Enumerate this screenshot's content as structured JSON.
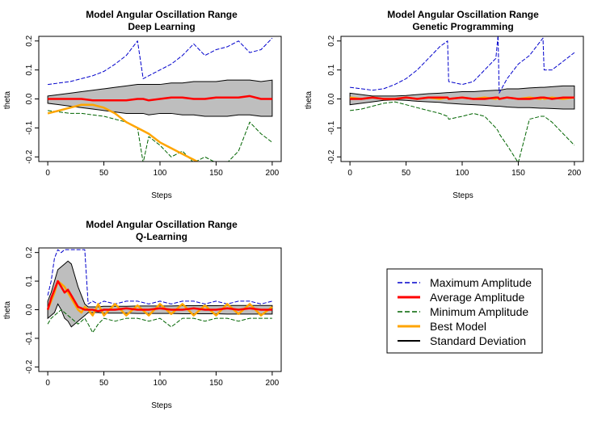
{
  "colors": {
    "max": "#0000cc",
    "avg": "#ff0000",
    "min": "#006400",
    "best": "#ffa500",
    "std_fill": "#bebebe",
    "std_line": "#000000"
  },
  "legend": {
    "entries": [
      {
        "label": "Maximum Amplitude",
        "color": "#0000cc",
        "style": "dashed"
      },
      {
        "label": "Average Amplitude",
        "color": "#ff0000",
        "style": "solid-thick"
      },
      {
        "label": "Minimum Amplitude",
        "color": "#006400",
        "style": "dashed"
      },
      {
        "label": "Best Model",
        "color": "#ffa500",
        "style": "solid-thick"
      },
      {
        "label": "Standard Deviation",
        "color": "#000000",
        "style": "solid"
      }
    ]
  },
  "chart_data": [
    {
      "type": "line",
      "title": "Model Angular Oscillation Range",
      "subtitle": "Deep Learning",
      "xlabel": "Steps",
      "ylabel": "theta",
      "xlim": [
        0,
        200
      ],
      "ylim": [
        -0.2,
        0.2
      ],
      "xticks": [
        "0",
        "50",
        "100",
        "150",
        "200"
      ],
      "yticks": [
        "-0.2",
        "-0.1",
        "0.0",
        "0.1",
        "0.2"
      ],
      "x": [
        0,
        10,
        20,
        30,
        40,
        50,
        60,
        70,
        80,
        85,
        90,
        100,
        110,
        120,
        130,
        140,
        150,
        160,
        170,
        180,
        190,
        200
      ],
      "series": [
        {
          "name": "Maximum Amplitude",
          "values": [
            0.05,
            0.055,
            0.06,
            0.07,
            0.08,
            0.095,
            0.12,
            0.15,
            0.2,
            0.07,
            0.08,
            0.1,
            0.12,
            0.15,
            0.19,
            0.15,
            0.17,
            0.18,
            0.2,
            0.16,
            0.17,
            0.21
          ]
        },
        {
          "name": "Average Amplitude",
          "values": [
            0.0,
            0.0,
            0.0,
            0.0,
            -0.005,
            -0.005,
            -0.005,
            -0.005,
            0.0,
            0.0,
            -0.005,
            0.0,
            0.005,
            0.005,
            0.0,
            0.0,
            0.005,
            0.005,
            0.005,
            0.01,
            0.0,
            0.0
          ]
        },
        {
          "name": "Minimum Amplitude",
          "values": [
            -0.04,
            -0.045,
            -0.05,
            -0.05,
            -0.055,
            -0.06,
            -0.07,
            -0.08,
            -0.1,
            -0.22,
            -0.13,
            -0.16,
            -0.2,
            -0.18,
            -0.22,
            -0.2,
            -0.22,
            -0.22,
            -0.18,
            -0.08,
            -0.12,
            -0.15
          ]
        },
        {
          "name": "Best Model",
          "values": [
            -0.05,
            -0.04,
            -0.03,
            -0.02,
            -0.02,
            -0.03,
            -0.05,
            -0.08,
            -0.1,
            -0.11,
            -0.12,
            -0.15,
            -0.17,
            -0.19,
            -0.21,
            -0.23,
            null,
            null,
            null,
            null,
            null,
            null
          ]
        },
        {
          "name": "Standard Deviation Upper",
          "values": [
            0.01,
            0.015,
            0.02,
            0.025,
            0.03,
            0.035,
            0.04,
            0.045,
            0.05,
            0.05,
            0.05,
            0.05,
            0.055,
            0.055,
            0.06,
            0.06,
            0.06,
            0.065,
            0.065,
            0.065,
            0.06,
            0.065
          ]
        },
        {
          "name": "Standard Deviation Lower",
          "values": [
            -0.015,
            -0.02,
            -0.025,
            -0.03,
            -0.035,
            -0.04,
            -0.045,
            -0.05,
            -0.05,
            -0.05,
            -0.055,
            -0.05,
            -0.05,
            -0.055,
            -0.055,
            -0.06,
            -0.06,
            -0.06,
            -0.055,
            -0.055,
            -0.06,
            -0.06
          ]
        }
      ]
    },
    {
      "type": "line",
      "title": "Model Angular Oscillation Range",
      "subtitle": "Genetic Programming",
      "xlabel": "Steps",
      "ylabel": "theta",
      "xlim": [
        0,
        200
      ],
      "ylim": [
        -0.2,
        0.2
      ],
      "xticks": [
        "0",
        "50",
        "100",
        "150",
        "200"
      ],
      "yticks": [
        "-0.2",
        "-0.1",
        "0.0",
        "0.1",
        "0.2"
      ],
      "x": [
        0,
        10,
        20,
        30,
        40,
        50,
        60,
        70,
        80,
        87,
        88,
        100,
        110,
        120,
        130,
        132,
        133,
        140,
        150,
        160,
        170,
        172,
        173,
        180,
        190,
        200
      ],
      "series": [
        {
          "name": "Maximum Amplitude",
          "values": [
            0.04,
            0.035,
            0.03,
            0.035,
            0.05,
            0.07,
            0.1,
            0.14,
            0.18,
            0.2,
            0.06,
            0.05,
            0.06,
            0.1,
            0.14,
            0.22,
            0.02,
            0.07,
            0.12,
            0.15,
            0.2,
            0.21,
            0.1,
            0.1,
            0.13,
            0.16
          ]
        },
        {
          "name": "Average Amplitude",
          "values": [
            0.0,
            0.0,
            0.005,
            0.0,
            0.0,
            0.005,
            0.0,
            0.005,
            0.005,
            0.005,
            0.0,
            0.005,
            0.0,
            0.0,
            0.005,
            0.005,
            0.0,
            0.005,
            0.0,
            0.0,
            0.005,
            0.005,
            0.005,
            0.0,
            0.005,
            0.005
          ]
        },
        {
          "name": "Minimum Amplitude",
          "values": [
            -0.04,
            -0.035,
            -0.025,
            -0.015,
            -0.01,
            -0.02,
            -0.03,
            -0.04,
            -0.05,
            -0.06,
            -0.07,
            -0.06,
            -0.05,
            -0.06,
            -0.1,
            -0.11,
            -0.12,
            -0.16,
            -0.22,
            -0.07,
            -0.06,
            -0.06,
            -0.06,
            -0.08,
            -0.12,
            -0.16
          ]
        },
        {
          "name": "Best Model",
          "values": [
            0.005,
            0.0,
            0.005,
            0.0,
            0.0,
            0.005,
            0.0,
            0.005,
            0.0,
            0.005,
            0.0,
            0.005,
            0.0,
            0.005,
            0.0,
            0.005,
            0.0,
            0.005,
            0.0,
            0.005,
            0.0,
            0.005,
            0.0,
            0.005,
            0.0,
            0.005
          ]
        },
        {
          "name": "Standard Deviation Upper",
          "values": [
            0.02,
            0.015,
            0.01,
            0.01,
            0.01,
            0.012,
            0.015,
            0.018,
            0.02,
            0.022,
            0.022,
            0.025,
            0.025,
            0.028,
            0.03,
            0.03,
            0.03,
            0.035,
            0.035,
            0.038,
            0.04,
            0.04,
            0.04,
            0.042,
            0.045,
            0.045
          ]
        },
        {
          "name": "Standard Deviation Lower",
          "values": [
            -0.02,
            -0.015,
            -0.01,
            -0.005,
            -0.003,
            -0.005,
            -0.008,
            -0.01,
            -0.012,
            -0.015,
            -0.015,
            -0.018,
            -0.02,
            -0.022,
            -0.025,
            -0.025,
            -0.025,
            -0.028,
            -0.03,
            -0.03,
            -0.032,
            -0.032,
            -0.032,
            -0.033,
            -0.035,
            -0.035
          ]
        }
      ]
    },
    {
      "type": "line",
      "title": "Model Angular Oscillation Range",
      "subtitle": "Q-Learning",
      "xlabel": "Steps",
      "ylabel": "theta",
      "xlim": [
        0,
        200
      ],
      "ylim": [
        -0.2,
        0.2
      ],
      "xticks": [
        "0",
        "50",
        "100",
        "150",
        "200"
      ],
      "yticks": [
        "-0.2",
        "-0.1",
        "0.0",
        "0.1",
        "0.2"
      ],
      "x": [
        0,
        3,
        6,
        9,
        12,
        15,
        18,
        21,
        24,
        27,
        30,
        33,
        36,
        40,
        45,
        50,
        60,
        70,
        80,
        90,
        100,
        110,
        120,
        130,
        140,
        150,
        160,
        170,
        180,
        190,
        200
      ],
      "series": [
        {
          "name": "Maximum Amplitude",
          "values": [
            0.05,
            0.1,
            0.18,
            0.21,
            0.2,
            0.21,
            0.21,
            0.21,
            0.21,
            0.21,
            0.21,
            0.21,
            0.02,
            0.03,
            0.02,
            0.03,
            0.02,
            0.03,
            0.03,
            0.02,
            0.03,
            0.02,
            0.03,
            0.03,
            0.02,
            0.03,
            0.02,
            0.03,
            0.03,
            0.02,
            0.03
          ]
        },
        {
          "name": "Average Amplitude",
          "values": [
            0.0,
            0.04,
            0.07,
            0.1,
            0.08,
            0.06,
            0.07,
            0.05,
            0.03,
            0.01,
            0.005,
            0.0,
            0.0,
            0.0,
            -0.005,
            0.0,
            0.0,
            0.005,
            0.0,
            0.0,
            0.005,
            0.0,
            0.0,
            0.005,
            0.0,
            0.0,
            0.005,
            0.0,
            0.005,
            0.0,
            0.0
          ]
        },
        {
          "name": "Minimum Amplitude",
          "values": [
            -0.05,
            -0.03,
            -0.02,
            -0.01,
            0.0,
            -0.01,
            -0.02,
            -0.03,
            -0.04,
            -0.05,
            -0.04,
            -0.03,
            -0.05,
            -0.08,
            -0.05,
            -0.03,
            -0.04,
            -0.03,
            -0.03,
            -0.04,
            -0.03,
            -0.06,
            -0.03,
            -0.03,
            -0.04,
            -0.03,
            -0.03,
            -0.04,
            -0.03,
            -0.03,
            -0.03
          ]
        },
        {
          "name": "Best Model",
          "values": [
            0.0,
            0.03,
            0.06,
            0.1,
            0.09,
            0.08,
            0.06,
            0.04,
            0.02,
            0.0,
            -0.01,
            0.01,
            0.0,
            -0.02,
            0.02,
            -0.02,
            0.02,
            -0.02,
            0.015,
            -0.02,
            0.02,
            -0.015,
            0.02,
            -0.02,
            0.015,
            -0.02,
            0.02,
            -0.015,
            0.02,
            -0.02,
            0.01
          ]
        },
        {
          "name": "Standard Deviation Upper",
          "values": [
            0.03,
            0.06,
            0.1,
            0.14,
            0.15,
            0.16,
            0.17,
            0.16,
            0.12,
            0.08,
            0.05,
            0.02,
            0.01,
            0.01,
            0.01,
            0.012,
            0.012,
            0.012,
            0.013,
            0.013,
            0.013,
            0.013,
            0.014,
            0.014,
            0.014,
            0.014,
            0.015,
            0.015,
            0.015,
            0.015,
            0.015
          ]
        },
        {
          "name": "Standard Deviation Lower",
          "values": [
            -0.03,
            -0.02,
            -0.01,
            0.02,
            0.0,
            -0.03,
            -0.04,
            -0.06,
            -0.05,
            -0.04,
            -0.03,
            -0.02,
            -0.01,
            -0.01,
            -0.01,
            -0.012,
            -0.012,
            -0.012,
            -0.013,
            -0.013,
            -0.013,
            -0.013,
            -0.014,
            -0.014,
            -0.014,
            -0.014,
            -0.015,
            -0.015,
            -0.015,
            -0.015,
            -0.015
          ]
        }
      ]
    }
  ]
}
